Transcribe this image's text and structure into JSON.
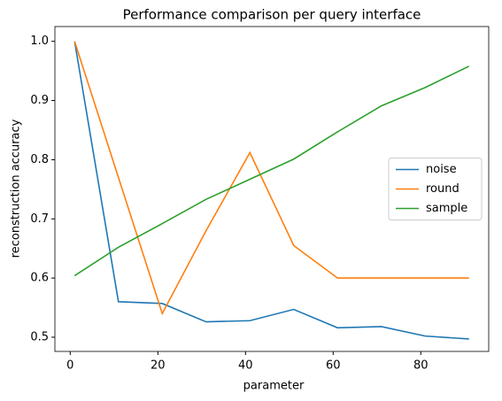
{
  "chart_data": {
    "type": "line",
    "title": "Performance comparison per query interface",
    "x_label": "parameter",
    "y_label": "reconstruction accuracy",
    "x": [
      1,
      11,
      21,
      31,
      41,
      51,
      61,
      71,
      81,
      91
    ],
    "series": [
      {
        "name": "noise",
        "color": "#1f77b4",
        "values": [
          1.0,
          0.56,
          0.557,
          0.526,
          0.528,
          0.547,
          0.516,
          0.518,
          0.502,
          0.497
        ]
      },
      {
        "name": "round",
        "color": "#ff7f0e",
        "values": [
          1.0,
          0.77,
          0.54,
          0.68,
          0.812,
          0.655,
          0.6,
          0.6,
          0.6,
          0.6
        ]
      },
      {
        "name": "sample",
        "color": "#2ca02c",
        "values": [
          0.604,
          0.652,
          0.692,
          0.733,
          0.767,
          0.801,
          0.847,
          0.891,
          0.922,
          0.958
        ]
      }
    ],
    "xlim": [
      -3.5,
      95.5
    ],
    "ylim": [
      0.476,
      1.025
    ],
    "xticks": [
      0,
      20,
      40,
      60,
      80
    ],
    "yticks": [
      {
        "value": 0.5,
        "label": "0.5"
      },
      {
        "value": 0.6,
        "label": "0.6"
      },
      {
        "value": 0.7,
        "label": "0.7"
      },
      {
        "value": 0.8,
        "label": "0.8"
      },
      {
        "value": 0.9,
        "label": "0.9"
      },
      {
        "value": 1.0,
        "label": "1.0"
      }
    ],
    "legend": "center right",
    "grid": false
  }
}
